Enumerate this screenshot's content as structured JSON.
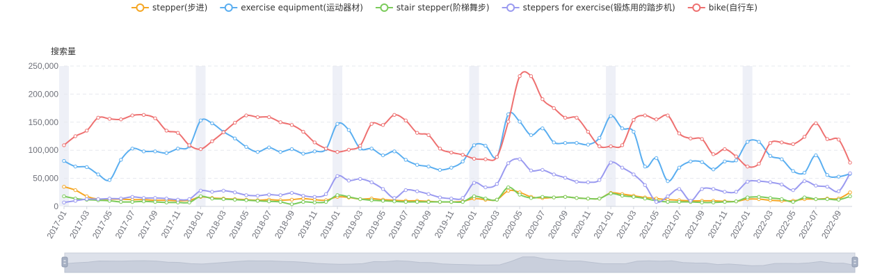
{
  "chart_data": {
    "type": "line",
    "title": "",
    "ylabel": "搜索量",
    "xlabel": "",
    "ylim": [
      0,
      250000
    ],
    "yticks": [
      0,
      50000,
      100000,
      150000,
      200000,
      250000
    ],
    "ytick_labels": [
      "0",
      "50,000",
      "100,000",
      "150,000",
      "200,000",
      "250,000"
    ],
    "x": [
      "2017-01",
      "2017-02",
      "2017-03",
      "2017-04",
      "2017-05",
      "2017-06",
      "2017-07",
      "2017-08",
      "2017-09",
      "2017-10",
      "2017-11",
      "2017-12",
      "2018-01",
      "2018-02",
      "2018-03",
      "2018-04",
      "2018-05",
      "2018-06",
      "2018-07",
      "2018-08",
      "2018-09",
      "2018-10",
      "2018-11",
      "2018-12",
      "2019-01",
      "2019-02",
      "2019-03",
      "2019-04",
      "2019-05",
      "2019-06",
      "2019-07",
      "2019-08",
      "2019-09",
      "2019-10",
      "2019-11",
      "2019-12",
      "2020-01",
      "2020-02",
      "2020-03",
      "2020-04",
      "2020-05",
      "2020-06",
      "2020-07",
      "2020-08",
      "2020-09",
      "2020-10",
      "2020-11",
      "2020-12",
      "2021-01",
      "2021-02",
      "2021-03",
      "2021-04",
      "2021-05",
      "2021-06",
      "2021-07",
      "2021-08",
      "2021-09",
      "2021-10",
      "2021-11",
      "2021-12",
      "2022-01",
      "2022-02",
      "2022-03",
      "2022-04",
      "2022-05",
      "2022-06",
      "2022-07",
      "2022-08",
      "2022-09",
      "2022-10"
    ],
    "xtick_labels": [
      "2017-01",
      "2017-03",
      "2017-05",
      "2017-07",
      "2017-09",
      "2017-11",
      "2018-01",
      "2018-03",
      "2018-05",
      "2018-07",
      "2018-09",
      "2018-11",
      "2019-01",
      "2019-03",
      "2019-05",
      "2019-07",
      "2019-09",
      "2019-11",
      "2020-01",
      "2020-03",
      "2020-05",
      "2020-07",
      "2020-09",
      "2020-11",
      "2021-01",
      "2021-03",
      "2021-05",
      "2021-07",
      "2021-09",
      "2021-11",
      "2022-01",
      "2022-03",
      "2022-05",
      "2022-07",
      "2022-09"
    ],
    "highlight_months": [
      "2017-01",
      "2018-01",
      "2019-01",
      "2020-01",
      "2021-01",
      "2022-01"
    ],
    "legend_position": "top-center",
    "grid": true,
    "series": [
      {
        "name": "stepper(步进)",
        "color": "#f5a623",
        "values": [
          35000,
          29000,
          18000,
          13000,
          13000,
          13000,
          12000,
          12000,
          11000,
          11000,
          10000,
          11000,
          17000,
          15000,
          14000,
          13000,
          12000,
          11000,
          12000,
          11000,
          12000,
          14000,
          12000,
          11000,
          17000,
          16000,
          13000,
          14000,
          12000,
          11000,
          10000,
          10000,
          9000,
          8000,
          8000,
          9000,
          14000,
          12000,
          12000,
          28000,
          25000,
          17000,
          15000,
          16000,
          17000,
          15000,
          14000,
          14000,
          24000,
          22000,
          19000,
          16000,
          14000,
          12000,
          11000,
          10000,
          10000,
          10000,
          9000,
          9000,
          13000,
          13000,
          11000,
          10000,
          10000,
          13000,
          13000,
          14000,
          14000,
          25000
        ]
      },
      {
        "name": "exercise equipment(运动器材)",
        "color": "#5aaef0",
        "values": [
          81000,
          71000,
          70000,
          57000,
          47000,
          83000,
          103000,
          98000,
          98000,
          95000,
          103000,
          107000,
          153000,
          148000,
          133000,
          121000,
          106000,
          97000,
          105000,
          97000,
          102000,
          94000,
          98000,
          102000,
          147000,
          136000,
          103000,
          103000,
          91000,
          98000,
          83000,
          74000,
          71000,
          65000,
          69000,
          80000,
          109000,
          108000,
          88000,
          164000,
          151000,
          127000,
          139000,
          114000,
          113000,
          113000,
          110000,
          122000,
          161000,
          139000,
          133000,
          71000,
          86000,
          45000,
          69000,
          80000,
          79000,
          66000,
          80000,
          82000,
          115000,
          115000,
          90000,
          84000,
          63000,
          60000,
          91000,
          56000,
          53000,
          58000
        ]
      },
      {
        "name": "stair stepper(阶梯舞步)",
        "color": "#7acb5a",
        "values": [
          18000,
          14000,
          12000,
          11000,
          10000,
          8000,
          8000,
          9000,
          8000,
          7000,
          7000,
          7000,
          18000,
          14000,
          13000,
          12000,
          11000,
          10000,
          9000,
          8000,
          4000,
          8000,
          7000,
          8000,
          20000,
          17000,
          13000,
          11000,
          10000,
          9000,
          8000,
          8000,
          8000,
          8000,
          8000,
          8000,
          18000,
          14000,
          12000,
          34000,
          21000,
          15000,
          17000,
          16000,
          17000,
          15000,
          14000,
          14000,
          23000,
          19000,
          17000,
          14000,
          10000,
          8000,
          8000,
          8000,
          7000,
          7000,
          8000,
          9000,
          16000,
          17000,
          15000,
          13000,
          8000,
          16000,
          13000,
          13000,
          12000,
          18000
        ]
      },
      {
        "name": "steppers for exercise(锻炼用的踏步机)",
        "color": "#9a9af0",
        "values": [
          7000,
          10000,
          13000,
          13000,
          14000,
          14000,
          17000,
          15000,
          15000,
          14000,
          12000,
          13000,
          28000,
          26000,
          28000,
          25000,
          20000,
          19000,
          21000,
          20000,
          24000,
          19000,
          17000,
          22000,
          54000,
          46000,
          49000,
          43000,
          31000,
          15000,
          29000,
          27000,
          22000,
          16000,
          14000,
          15000,
          42000,
          34000,
          40000,
          77000,
          84000,
          64000,
          65000,
          57000,
          51000,
          44000,
          43000,
          47000,
          78000,
          69000,
          57000,
          38000,
          8000,
          18000,
          31000,
          10000,
          31000,
          31000,
          26000,
          26000,
          44000,
          45000,
          43000,
          39000,
          29000,
          45000,
          37000,
          35000,
          27000,
          59000
        ]
      },
      {
        "name": "bike(自行车)",
        "color": "#ee7070",
        "values": [
          109000,
          125000,
          135000,
          158000,
          156000,
          155000,
          162000,
          163000,
          157000,
          135000,
          131000,
          109000,
          102000,
          116000,
          132000,
          149000,
          162000,
          159000,
          159000,
          150000,
          145000,
          133000,
          114000,
          103000,
          97000,
          101000,
          108000,
          147000,
          145000,
          163000,
          153000,
          131000,
          127000,
          103000,
          96000,
          92000,
          85000,
          84000,
          88000,
          151000,
          232000,
          232000,
          191000,
          175000,
          158000,
          158000,
          133000,
          107000,
          107000,
          109000,
          154000,
          162000,
          155000,
          162000,
          130000,
          121000,
          120000,
          93000,
          102000,
          89000,
          71000,
          76000,
          113000,
          114000,
          111000,
          124000,
          148000,
          120000,
          119000,
          78000
        ]
      }
    ]
  }
}
